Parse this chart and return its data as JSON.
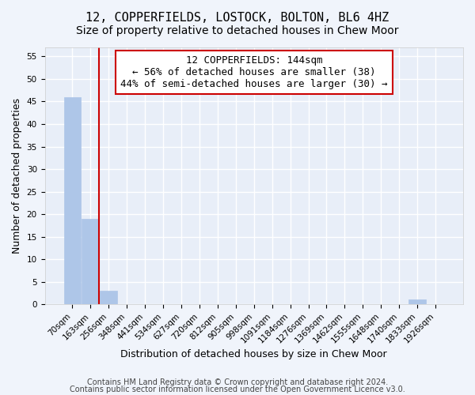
{
  "title": "12, COPPERFIELDS, LOSTOCK, BOLTON, BL6 4HZ",
  "subtitle": "Size of property relative to detached houses in Chew Moor",
  "xlabel": "Distribution of detached houses by size in Chew Moor",
  "ylabel": "Number of detached properties",
  "bar_values": [
    46,
    19,
    3,
    0,
    0,
    0,
    0,
    0,
    0,
    0,
    0,
    0,
    0,
    0,
    0,
    0,
    0,
    0,
    0,
    1,
    0
  ],
  "categories": [
    "70sqm",
    "163sqm",
    "256sqm",
    "348sqm",
    "441sqm",
    "534sqm",
    "627sqm",
    "720sqm",
    "812sqm",
    "905sqm",
    "998sqm",
    "1091sqm",
    "1184sqm",
    "1276sqm",
    "1369sqm",
    "1462sqm",
    "1555sqm",
    "1648sqm",
    "1740sqm",
    "1833sqm",
    "1926sqm"
  ],
  "bar_color": "#aec6e8",
  "bar_edge_color": "#aec6e8",
  "vline_x": 1.47,
  "vline_color": "#cc0000",
  "annotation_title": "12 COPPERFIELDS: 144sqm",
  "annotation_line1": "← 56% of detached houses are smaller (38)",
  "annotation_line2": "44% of semi-detached houses are larger (30) →",
  "annotation_box_color": "#cc0000",
  "ylim": [
    0,
    57
  ],
  "yticks": [
    0,
    5,
    10,
    15,
    20,
    25,
    30,
    35,
    40,
    45,
    50,
    55
  ],
  "footer1": "Contains HM Land Registry data © Crown copyright and database right 2024.",
  "footer2": "Contains public sector information licensed under the Open Government Licence v3.0.",
  "bg_color": "#f0f4fb",
  "plot_bg_color": "#e8eef8",
  "grid_color": "#ffffff",
  "title_fontsize": 11,
  "subtitle_fontsize": 10,
  "axis_label_fontsize": 9,
  "tick_fontsize": 7.5,
  "annotation_fontsize": 9,
  "footer_fontsize": 7
}
